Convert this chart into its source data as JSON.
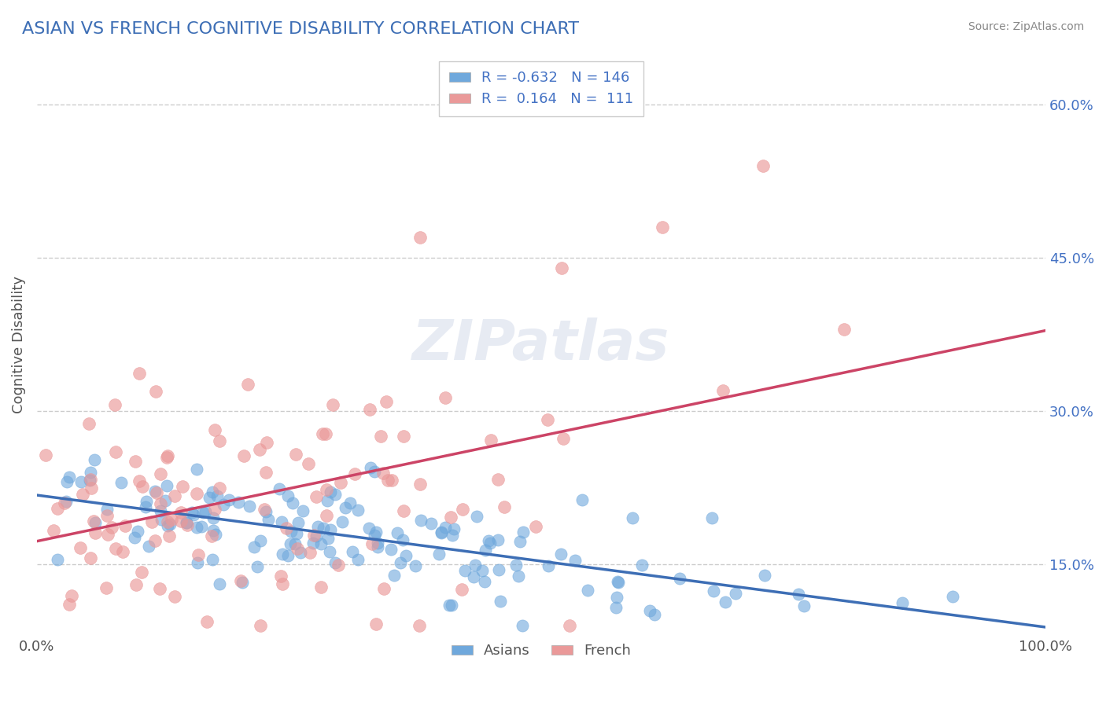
{
  "title": "ASIAN VS FRENCH COGNITIVE DISABILITY CORRELATION CHART",
  "source": "Source: ZipAtlas.com",
  "xlabel": "",
  "ylabel": "Cognitive Disability",
  "xlim": [
    0,
    1.0
  ],
  "ylim": [
    0.08,
    0.65
  ],
  "x_tick_labels": [
    "0.0%",
    "100.0%"
  ],
  "y_tick_labels_right": [
    "15.0%",
    "30.0%",
    "45.0%",
    "60.0%"
  ],
  "y_tick_values_right": [
    0.15,
    0.3,
    0.45,
    0.6
  ],
  "asian_color": "#6fa8dc",
  "french_color": "#ea9999",
  "asian_line_color": "#3d6eb5",
  "french_line_color": "#cc4466",
  "asian_R": -0.632,
  "asian_N": 146,
  "french_R": 0.164,
  "french_N": 111,
  "background_color": "#ffffff",
  "grid_color": "#cccccc",
  "watermark": "ZIPatlas",
  "title_color": "#3d6eb5",
  "title_fontsize": 16,
  "legend_R_color": "#4472c4",
  "legend_N_color": "#4472c4"
}
